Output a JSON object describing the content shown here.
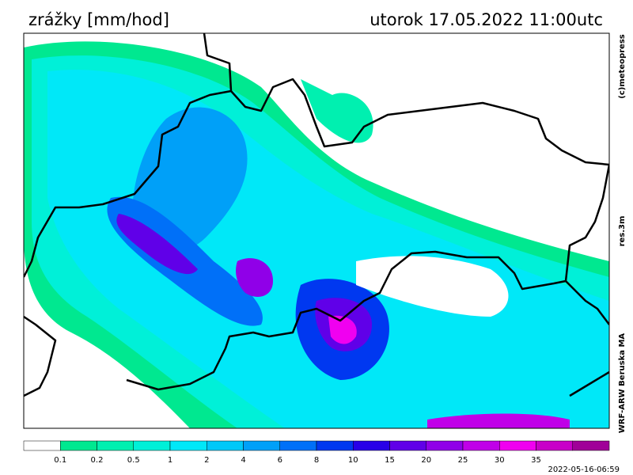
{
  "header": {
    "title": "zrážky [mm/hod]",
    "date": "utorok 17.05.2022 11:00utc"
  },
  "side": {
    "copyright": "(c)meteopress",
    "resolution": "res.3m",
    "model": "WRF-ARW Beruska MA"
  },
  "legend": {
    "colors": [
      "#ffffff",
      "#00e890",
      "#00f0b0",
      "#00f0d8",
      "#00e8f8",
      "#00c8f8",
      "#00a0f8",
      "#0070f8",
      "#0038f0",
      "#2800e8",
      "#6000e8",
      "#9000e8",
      "#c000e8",
      "#f000f0",
      "#c800c8",
      "#a00098"
    ],
    "labels": [
      "0.1",
      "0.2",
      "0.5",
      "1",
      "2",
      "4",
      "6",
      "8",
      "10",
      "15",
      "20",
      "25",
      "30",
      "35"
    ]
  },
  "footer": {
    "timestamp": "2022-05-16-06:59"
  }
}
